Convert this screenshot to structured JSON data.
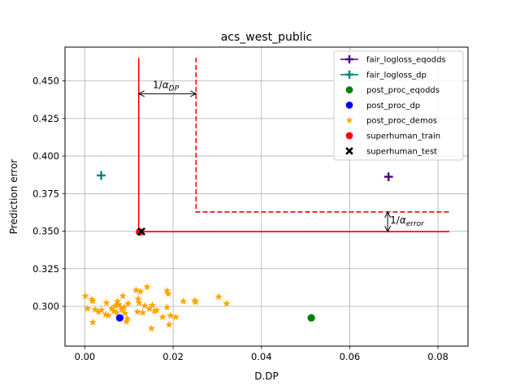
{
  "chart_data": {
    "type": "scatter",
    "title": "acs_west_public",
    "xlabel": "D.DP",
    "ylabel": "Prediction error",
    "xlim": [
      -0.0045,
      0.0868
    ],
    "ylim": [
      0.2735,
      0.4725
    ],
    "xticks": [
      0.0,
      0.02,
      0.04,
      0.06,
      0.08
    ],
    "xtick_labels": [
      "0.00",
      "0.02",
      "0.04",
      "0.06",
      "0.08"
    ],
    "yticks": [
      0.3,
      0.325,
      0.35,
      0.375,
      0.4,
      0.425,
      0.45
    ],
    "ytick_labels": [
      "0.300",
      "0.325",
      "0.350",
      "0.375",
      "0.400",
      "0.425",
      "0.450"
    ],
    "grid": true,
    "legend_position": "top-right",
    "series": [
      {
        "name": "fair_logloss_eqodds",
        "marker": "plus",
        "color": "#4b0082",
        "points": [
          [
            0.0688,
            0.3862
          ]
        ]
      },
      {
        "name": "fair_logloss_dp",
        "marker": "plus",
        "color": "#008080",
        "points": [
          [
            0.0037,
            0.3871
          ]
        ]
      },
      {
        "name": "post_proc_eqodds",
        "marker": "circle",
        "color": "#008000",
        "points": [
          [
            0.0513,
            0.2923
          ]
        ]
      },
      {
        "name": "post_proc_dp",
        "marker": "circle",
        "color": "#0000ff",
        "points": [
          [
            0.0079,
            0.2923
          ]
        ]
      },
      {
        "name": "post_proc_demos",
        "marker": "star",
        "color": "#ffa500",
        "points": [
          [
            0.0001,
            0.3068
          ],
          [
            0.0006,
            0.2985
          ],
          [
            0.0016,
            0.3045
          ],
          [
            0.0018,
            0.3035
          ],
          [
            0.0018,
            0.2893
          ],
          [
            0.0023,
            0.2978
          ],
          [
            0.0031,
            0.2963
          ],
          [
            0.0038,
            0.2975
          ],
          [
            0.0047,
            0.2945
          ],
          [
            0.0049,
            0.3023
          ],
          [
            0.0053,
            0.2938
          ],
          [
            0.0061,
            0.2985
          ],
          [
            0.0066,
            0.2968
          ],
          [
            0.0069,
            0.3003
          ],
          [
            0.0072,
            0.2958
          ],
          [
            0.0074,
            0.3033
          ],
          [
            0.0076,
            0.3013
          ],
          [
            0.0082,
            0.2993
          ],
          [
            0.0084,
            0.2978
          ],
          [
            0.0086,
            0.3068
          ],
          [
            0.0089,
            0.2993
          ],
          [
            0.0091,
            0.2953
          ],
          [
            0.0094,
            0.2898
          ],
          [
            0.0096,
            0.2918
          ],
          [
            0.0098,
            0.3018
          ],
          [
            0.0116,
            0.3108
          ],
          [
            0.0119,
            0.2963
          ],
          [
            0.0121,
            0.3048
          ],
          [
            0.0123,
            0.3023
          ],
          [
            0.0126,
            0.3098
          ],
          [
            0.0131,
            0.2958
          ],
          [
            0.0136,
            0.3003
          ],
          [
            0.0141,
            0.3128
          ],
          [
            0.0146,
            0.2983
          ],
          [
            0.0151,
            0.2853
          ],
          [
            0.0153,
            0.3008
          ],
          [
            0.0158,
            0.2968
          ],
          [
            0.0163,
            0.2973
          ],
          [
            0.0176,
            0.2928
          ],
          [
            0.0186,
            0.3103
          ],
          [
            0.0189,
            0.3083
          ],
          [
            0.0186,
            0.2993
          ],
          [
            0.0191,
            0.2878
          ],
          [
            0.0194,
            0.2938
          ],
          [
            0.0206,
            0.2928
          ],
          [
            0.0223,
            0.3033
          ],
          [
            0.0249,
            0.3038
          ],
          [
            0.0251,
            0.3028
          ],
          [
            0.0303,
            0.3063
          ],
          [
            0.0321,
            0.3018
          ]
        ]
      },
      {
        "name": "superhuman_train",
        "marker": "circle",
        "color": "#ff0000",
        "points": [
          [
            0.0124,
            0.3495
          ]
        ]
      },
      {
        "name": "superhuman_test",
        "marker": "x",
        "color": "#000000",
        "points": [
          [
            0.0128,
            0.3498
          ]
        ]
      }
    ],
    "boundary_solid": {
      "color": "#ff0000",
      "x_left": 0.0122,
      "y_bottom": 0.3497,
      "x_right": 0.0826,
      "y_top": 0.4655
    },
    "boundary_dashed": {
      "color": "#ff0000",
      "x_left": 0.0252,
      "y_bottom": 0.3628,
      "x_right": 0.0826,
      "y_top": 0.4655
    },
    "annotations": {
      "alpha_dp": {
        "prefix": "1/",
        "symbol": "α",
        "sub": "DP",
        "y": 0.4415,
        "x_from": 0.0122,
        "x_to": 0.0252
      },
      "alpha_error": {
        "prefix": "1/",
        "symbol": "α",
        "sub": "error",
        "x": 0.0686,
        "y_from": 0.3497,
        "y_to": 0.3628
      }
    }
  }
}
